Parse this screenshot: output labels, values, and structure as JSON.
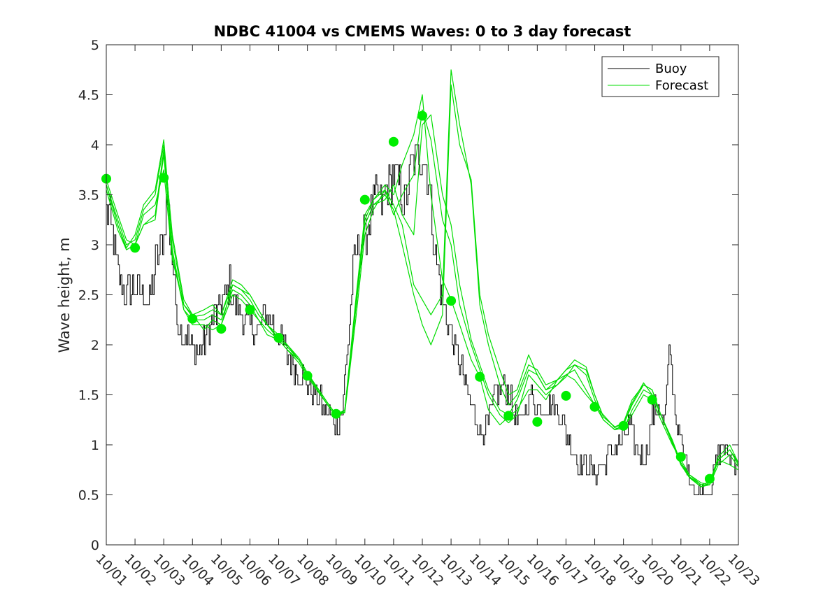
{
  "chart_data": {
    "type": "line",
    "title": "NDBC 41004 vs CMEMS Waves: 0 to 3 day forecast",
    "xlabel": "",
    "ylabel": "Wave height, m",
    "xlim": [
      0,
      22
    ],
    "ylim": [
      0,
      5
    ],
    "yticks": [
      0,
      0.5,
      1,
      1.5,
      2,
      2.5,
      3,
      3.5,
      4,
      4.5,
      5
    ],
    "xtick_labels": [
      "10/01",
      "10/02",
      "10/03",
      "10/04",
      "10/05",
      "10/06",
      "10/07",
      "10/08",
      "10/09",
      "10/10",
      "10/11",
      "10/12",
      "10/13",
      "10/14",
      "10/15",
      "10/16",
      "10/17",
      "10/18",
      "10/19",
      "10/20",
      "10/21",
      "10/22",
      "10/23"
    ],
    "legend": {
      "placement": "top-right",
      "entries": [
        {
          "label": "Buoy",
          "color": "#000000"
        },
        {
          "label": "Forecast",
          "color": "#00dd00"
        }
      ]
    },
    "buoy_anchors": {
      "x": [
        0,
        0.1,
        0.2,
        0.3,
        0.5,
        0.7,
        1.0,
        1.3,
        1.5,
        1.7,
        2.0,
        2.1,
        2.3,
        2.5,
        2.7,
        3.0,
        3.2,
        3.5,
        3.8,
        4.0,
        4.3,
        4.5,
        4.7,
        5.0,
        5.3,
        5.5,
        5.8,
        6.0,
        6.3,
        6.5,
        6.8,
        7.0,
        7.3,
        7.5,
        7.8,
        8.0,
        8.2,
        8.4,
        8.6,
        8.8,
        9.0,
        9.2,
        9.4,
        9.6,
        9.8,
        10.0,
        10.2,
        10.4,
        10.6,
        10.8,
        11.0,
        11.2,
        11.4,
        11.6,
        11.8,
        12.0,
        12.2,
        12.5,
        12.8,
        13.0,
        13.3,
        13.5,
        13.8,
        14.0,
        14.2,
        14.4,
        14.6,
        14.8,
        15.0,
        15.3,
        15.5,
        15.8,
        16.0,
        16.3,
        16.5,
        16.8,
        17.0,
        17.3,
        17.5,
        17.8,
        18.0,
        18.2,
        18.4,
        18.6,
        18.8,
        19.0,
        19.2,
        19.4,
        19.5,
        19.6,
        19.8,
        20.0,
        20.2,
        20.4,
        20.6,
        20.8,
        21.0,
        21.2,
        21.4,
        21.6,
        22.0
      ],
      "y": [
        3.3,
        3.3,
        3.1,
        2.9,
        2.6,
        2.5,
        2.6,
        2.5,
        2.4,
        2.8,
        3.1,
        3.5,
        2.8,
        2.2,
        2.1,
        2.0,
        1.9,
        2.1,
        2.3,
        2.4,
        2.6,
        2.4,
        2.3,
        2.2,
        2.1,
        2.3,
        2.2,
        2.1,
        1.9,
        1.8,
        1.7,
        1.6,
        1.5,
        1.4,
        1.3,
        1.2,
        1.3,
        2.0,
        2.8,
        3.0,
        3.1,
        3.3,
        3.5,
        3.4,
        3.6,
        3.7,
        3.6,
        3.4,
        3.8,
        3.9,
        3.9,
        3.7,
        3.0,
        2.6,
        2.3,
        2.1,
        1.9,
        1.6,
        1.3,
        1.1,
        1.2,
        1.5,
        1.6,
        1.5,
        1.3,
        1.2,
        1.4,
        1.5,
        1.4,
        1.4,
        1.4,
        1.3,
        1.1,
        0.9,
        0.8,
        0.8,
        0.7,
        0.8,
        0.9,
        1.0,
        1.1,
        1.2,
        1.0,
        0.9,
        0.9,
        1.3,
        1.4,
        1.2,
        1.5,
        2.0,
        1.3,
        1.0,
        0.8,
        0.6,
        0.5,
        0.5,
        0.5,
        0.8,
        1.0,
        0.9,
        0.8
      ]
    },
    "forecast_series": [
      {
        "x": [
          0,
          0.4,
          0.7,
          1.0,
          1.3,
          1.7,
          2.0,
          2.3,
          2.7,
          3.0,
          3.4,
          3.7,
          4.0,
          4.4,
          4.7,
          5.0,
          5.3,
          5.6,
          6.0,
          6.3,
          6.7,
          7.0,
          7.4,
          7.7,
          8.0,
          8.3,
          8.7,
          9.0,
          9.3,
          9.7,
          10.0,
          10.3,
          10.7,
          11.0,
          11.3,
          11.7,
          12.0,
          12.3,
          12.7,
          13.0,
          13.3,
          13.7,
          14.0,
          14.3,
          14.7,
          15.0,
          15.3,
          15.7,
          16.0,
          16.3,
          16.7,
          17.0,
          17.3,
          17.7,
          18.0,
          18.3,
          18.7,
          19.0,
          19.3,
          19.7,
          20.0,
          20.3,
          20.7,
          21.0,
          21.3,
          21.7,
          22.0
        ],
        "y": [
          3.65,
          3.3,
          3.05,
          3.0,
          3.3,
          3.4,
          3.75,
          2.85,
          2.4,
          2.3,
          2.15,
          2.25,
          2.2,
          2.5,
          2.45,
          2.35,
          2.25,
          2.1,
          2.05,
          1.95,
          1.82,
          1.68,
          1.52,
          1.4,
          1.28,
          1.35,
          2.5,
          3.3,
          3.45,
          3.6,
          3.5,
          3.8,
          4.1,
          4.5,
          3.5,
          2.65,
          2.45,
          2.2,
          1.85,
          1.68,
          1.35,
          1.2,
          1.28,
          1.35,
          1.55,
          1.55,
          1.45,
          1.65,
          1.7,
          1.65,
          1.5,
          1.4,
          1.25,
          1.15,
          1.17,
          1.3,
          1.5,
          1.45,
          1.25,
          1.0,
          0.85,
          0.7,
          0.6,
          0.63,
          0.85,
          0.8,
          0.75
        ]
      },
      {
        "x": [
          0,
          0.4,
          0.7,
          1.0,
          1.3,
          1.7,
          2.0,
          2.3,
          2.7,
          3.0,
          3.4,
          3.7,
          4.0,
          4.4,
          4.7,
          5.0,
          5.3,
          5.6,
          6.0,
          6.3,
          6.7,
          7.0,
          7.4,
          7.7,
          8.0,
          8.3,
          8.7,
          9.0,
          9.3,
          9.7,
          10.0,
          10.3,
          10.7,
          11.0,
          11.3,
          11.7,
          12.0,
          12.3,
          12.7,
          13.0,
          13.3,
          13.7,
          14.0,
          14.3,
          14.7,
          15.0,
          15.3,
          15.7,
          16.0,
          16.3,
          16.7,
          17.0,
          17.3,
          17.7,
          18.0,
          18.3,
          18.7,
          19.0,
          19.3,
          19.7,
          20.0,
          20.3,
          20.7,
          21.0,
          21.3,
          21.7,
          22.0
        ],
        "y": [
          3.6,
          3.2,
          2.95,
          3.0,
          3.2,
          3.3,
          3.95,
          2.95,
          2.35,
          2.2,
          2.2,
          2.15,
          2.2,
          2.6,
          2.55,
          2.45,
          2.3,
          2.2,
          2.05,
          2.0,
          1.85,
          1.7,
          1.55,
          1.42,
          1.3,
          1.32,
          2.3,
          3.1,
          3.35,
          3.55,
          3.3,
          3.5,
          3.7,
          4.35,
          4.05,
          3.25,
          3.0,
          2.4,
          2.0,
          1.75,
          1.5,
          1.3,
          1.22,
          1.3,
          1.7,
          1.6,
          1.5,
          1.6,
          1.7,
          1.75,
          1.55,
          1.4,
          1.3,
          1.17,
          1.15,
          1.35,
          1.55,
          1.5,
          1.3,
          1.05,
          0.82,
          0.7,
          0.62,
          0.6,
          0.8,
          0.9,
          0.78
        ]
      },
      {
        "x": [
          0,
          0.4,
          0.7,
          1.0,
          1.3,
          1.7,
          2.0,
          2.3,
          2.7,
          3.0,
          3.4,
          3.7,
          4.0,
          4.4,
          4.7,
          5.0,
          5.3,
          5.6,
          6.0,
          6.3,
          6.7,
          7.0,
          7.4,
          7.7,
          8.0,
          8.3,
          8.7,
          9.0,
          9.3,
          9.7,
          10.0,
          10.3,
          10.7,
          11.0,
          11.3,
          11.7,
          12.0,
          12.3,
          12.7,
          13.0,
          13.3,
          13.7,
          14.0,
          14.3,
          14.7,
          15.0,
          15.3,
          15.7,
          16.0,
          16.3,
          16.7,
          17.0,
          17.3,
          17.7,
          18.0,
          18.3,
          18.7,
          19.0,
          19.3,
          19.7,
          20.0,
          20.3,
          20.7,
          21.0,
          21.3,
          21.7,
          22.0
        ],
        "y": [
          3.55,
          3.15,
          2.95,
          3.0,
          3.2,
          3.25,
          3.9,
          2.9,
          2.35,
          2.25,
          2.25,
          2.3,
          2.25,
          2.55,
          2.5,
          2.4,
          2.25,
          2.15,
          2.05,
          1.95,
          1.85,
          1.7,
          1.55,
          1.42,
          1.3,
          1.33,
          2.4,
          3.2,
          3.4,
          3.45,
          3.6,
          3.3,
          3.1,
          4.2,
          4.3,
          3.5,
          3.2,
          2.6,
          2.05,
          1.8,
          1.55,
          1.35,
          1.3,
          1.45,
          1.75,
          1.7,
          1.55,
          1.6,
          1.68,
          1.8,
          1.7,
          1.45,
          1.25,
          1.15,
          1.2,
          1.4,
          1.6,
          1.55,
          1.3,
          1.02,
          0.82,
          0.68,
          0.6,
          0.6,
          0.85,
          0.95,
          0.8
        ]
      },
      {
        "x": [
          0,
          0.4,
          0.7,
          1.0,
          1.3,
          1.7,
          2.0,
          2.3,
          2.7,
          3.0,
          3.4,
          3.7,
          4.0,
          4.4,
          4.7,
          5.0,
          5.3,
          5.6,
          6.0,
          6.3,
          6.7,
          7.0,
          7.4,
          7.7,
          8.0,
          8.3,
          8.7,
          9.0,
          9.3,
          9.7,
          10.0,
          10.3,
          10.7,
          11.0,
          11.3,
          11.7,
          12.0,
          12.3,
          12.7,
          13.0,
          13.3,
          13.7,
          14.0,
          14.3,
          14.7,
          15.0,
          15.3,
          15.7,
          16.0,
          16.3,
          16.7,
          17.0,
          17.3,
          17.7,
          18.0,
          18.3,
          18.7,
          19.0,
          19.3,
          19.7,
          20.0,
          20.3,
          20.7,
          21.0,
          21.3,
          21.7,
          22.0
        ],
        "y": [
          3.6,
          3.25,
          3.0,
          3.05,
          3.35,
          3.5,
          4.0,
          3.1,
          2.45,
          2.3,
          2.35,
          2.4,
          2.3,
          2.65,
          2.6,
          2.5,
          2.35,
          2.2,
          2.1,
          2.0,
          1.87,
          1.72,
          1.55,
          1.42,
          1.3,
          1.35,
          2.45,
          3.25,
          3.45,
          3.55,
          3.4,
          3.2,
          2.6,
          2.45,
          2.3,
          2.5,
          4.75,
          4.2,
          3.6,
          2.4,
          2.0,
          1.6,
          1.4,
          1.5,
          1.8,
          1.75,
          1.6,
          1.65,
          1.75,
          1.8,
          1.75,
          1.5,
          1.28,
          1.18,
          1.22,
          1.45,
          1.6,
          1.55,
          1.3,
          1.03,
          0.8,
          0.67,
          0.58,
          0.62,
          0.88,
          1.0,
          0.82
        ]
      },
      {
        "x": [
          0,
          0.4,
          0.7,
          1.0,
          1.3,
          1.7,
          2.0,
          2.3,
          2.7,
          3.0,
          3.4,
          3.7,
          4.0,
          4.4,
          4.7,
          5.0,
          5.3,
          5.6,
          6.0,
          6.3,
          6.7,
          7.0,
          7.4,
          7.7,
          8.0,
          8.3,
          8.7,
          9.0,
          9.3,
          9.7,
          10.0,
          10.3,
          10.7,
          11.0,
          11.3,
          11.7,
          12.0,
          12.3,
          12.7,
          13.0,
          13.3,
          13.7,
          14.0,
          14.3,
          14.7,
          15.0,
          15.3,
          15.7,
          16.0,
          16.3,
          16.7,
          17.0,
          17.3,
          17.7,
          18.0,
          18.3,
          18.7,
          19.0,
          19.3,
          19.7,
          20.0,
          20.3,
          20.7,
          21.0,
          21.3,
          21.7,
          22.0
        ],
        "y": [
          3.6,
          3.2,
          2.97,
          3.1,
          3.4,
          3.55,
          4.05,
          3.05,
          2.4,
          2.28,
          2.3,
          2.35,
          2.3,
          2.6,
          2.55,
          2.5,
          2.35,
          2.2,
          2.07,
          1.98,
          1.85,
          1.7,
          1.53,
          1.4,
          1.28,
          1.33,
          2.4,
          3.2,
          3.4,
          3.5,
          3.35,
          3.0,
          2.5,
          2.2,
          2.0,
          2.3,
          4.6,
          4.0,
          3.65,
          2.5,
          2.1,
          1.75,
          1.5,
          1.55,
          1.9,
          1.7,
          1.55,
          1.65,
          1.75,
          1.85,
          1.78,
          1.5,
          1.28,
          1.18,
          1.2,
          1.42,
          1.62,
          1.5,
          1.3,
          1.02,
          0.8,
          0.68,
          0.58,
          0.6,
          0.85,
          0.95,
          0.82
        ]
      }
    ],
    "forecast_markers": {
      "x": [
        0,
        1,
        2,
        3,
        4,
        5,
        6,
        7,
        8,
        9,
        10,
        11,
        12,
        13,
        14,
        15,
        16,
        17,
        18,
        19,
        20,
        21,
        22
      ],
      "y": [
        3.66,
        2.97,
        3.67,
        2.26,
        2.16,
        2.35,
        2.07,
        1.69,
        1.31,
        3.45,
        4.03,
        4.29,
        2.44,
        1.68,
        1.29,
        1.23,
        1.49,
        1.38,
        1.19,
        1.45,
        0.88,
        0.66,
        null
      ]
    },
    "colors": {
      "buoy": "#000000",
      "forecast": "#00dd00",
      "marker": "#00ee00",
      "axis": "#262626"
    }
  }
}
